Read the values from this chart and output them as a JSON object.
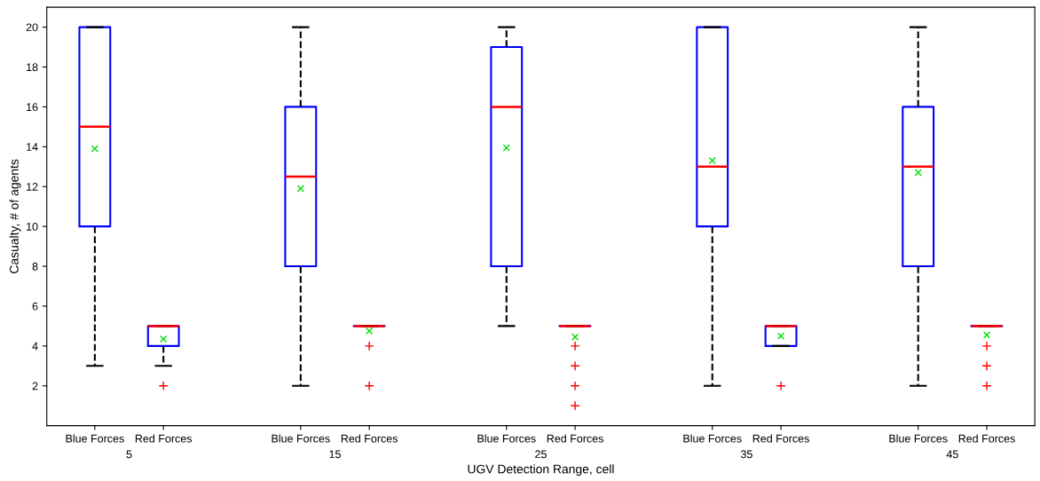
{
  "chart_data": {
    "type": "box",
    "xlabel": "UGV Detection Range, cell",
    "ylabel": "Casualty, # of agents",
    "categories": [
      "Blue Forces",
      "Red Forces",
      "Blue Forces",
      "Red Forces",
      "Blue Forces",
      "Red Forces",
      "Blue Forces",
      "Red Forces",
      "Blue Forces",
      "Red Forces"
    ],
    "annotations": [
      "5",
      "15",
      "25",
      "35",
      "45"
    ],
    "ylim": [
      0,
      21
    ],
    "yticks": [
      2,
      4,
      6,
      8,
      10,
      12,
      14,
      16,
      18,
      20
    ],
    "grid": false,
    "legend": false,
    "series": [
      {
        "color": "#0000ff",
        "boxes": [
          {
            "low": 3,
            "q1": 10,
            "median": 15,
            "q3": 20,
            "high": 20,
            "mean": 13.9
          },
          {
            "low": 3,
            "q1": 4,
            "median": 5,
            "q3": 5,
            "high": 5,
            "mean": 4.35,
            "outliers": [
              2
            ]
          },
          {
            "low": 2,
            "q1": 8,
            "median": 12.5,
            "q3": 16,
            "high": 20,
            "mean": 11.9
          },
          {
            "low": 5,
            "q1": 5,
            "median": 5,
            "q3": 5,
            "high": 5,
            "mean": 4.75,
            "outliers": [
              4,
              2
            ]
          },
          {
            "low": 5,
            "q1": 8,
            "median": 16,
            "q3": 19,
            "high": 20,
            "mean": 13.95
          },
          {
            "low": 5,
            "q1": 5,
            "median": 5,
            "q3": 5,
            "high": 5,
            "mean": 4.45,
            "outliers": [
              4,
              3,
              2,
              1
            ]
          },
          {
            "low": 2,
            "q1": 10,
            "median": 13,
            "q3": 20,
            "high": 20,
            "mean": 13.3
          },
          {
            "low": 4,
            "q1": 4,
            "median": 5,
            "q3": 5,
            "high": 5,
            "mean": 4.5,
            "outliers": [
              2
            ]
          },
          {
            "low": 2,
            "q1": 8,
            "median": 13,
            "q3": 16,
            "high": 20,
            "mean": 12.7
          },
          {
            "low": 5,
            "q1": 5,
            "median": 5,
            "q3": 5,
            "high": 5,
            "mean": 4.55,
            "outliers": [
              4,
              3,
              2
            ]
          }
        ]
      }
    ]
  }
}
